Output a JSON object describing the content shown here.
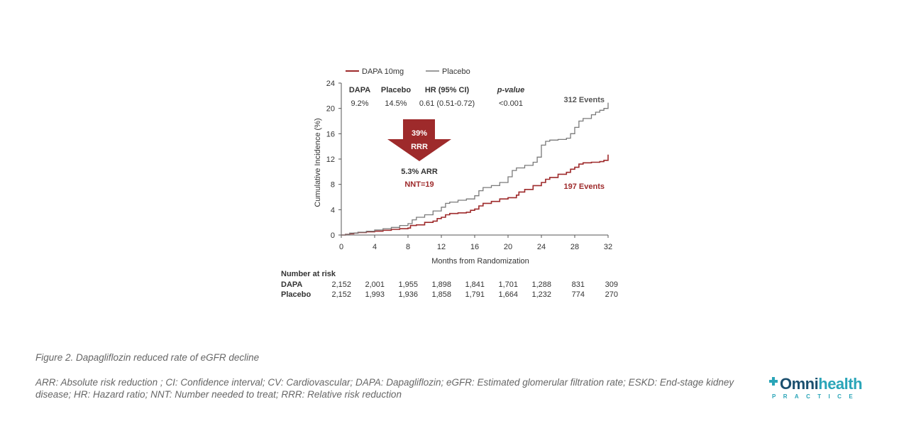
{
  "chart_data": {
    "type": "line",
    "xlabel": "Months from Randomization",
    "ylabel": "Cumulative Incidence (%)",
    "xlim": [
      0,
      32
    ],
    "ylim": [
      0,
      24
    ],
    "x_ticks": [
      "0",
      "4",
      "8",
      "12",
      "16",
      "20",
      "24",
      "28",
      "32"
    ],
    "y_ticks": [
      "0",
      "4",
      "8",
      "12",
      "16",
      "20",
      "24"
    ],
    "grid": false,
    "legend_position": "top-left",
    "series": [
      {
        "name": "DAPA 10mg",
        "color": "#9e2a2b",
        "end_label": "197 Events",
        "points": [
          [
            0,
            0
          ],
          [
            0.5,
            0.1
          ],
          [
            1,
            0.2
          ],
          [
            1.5,
            0.3
          ],
          [
            2,
            0.4
          ],
          [
            3,
            0.5
          ],
          [
            4,
            0.6
          ],
          [
            5,
            0.75
          ],
          [
            6,
            0.9
          ],
          [
            7,
            1.0
          ],
          [
            8,
            1.1
          ],
          [
            8.3,
            1.5
          ],
          [
            9,
            1.6
          ],
          [
            10,
            2.0
          ],
          [
            11,
            2.2
          ],
          [
            11.5,
            2.6
          ],
          [
            12,
            2.8
          ],
          [
            12.5,
            3.2
          ],
          [
            13,
            3.4
          ],
          [
            14,
            3.5
          ],
          [
            15,
            3.6
          ],
          [
            15.5,
            3.9
          ],
          [
            16,
            4.1
          ],
          [
            16.5,
            4.6
          ],
          [
            17,
            5.0
          ],
          [
            18,
            5.3
          ],
          [
            19,
            5.7
          ],
          [
            20,
            5.9
          ],
          [
            21,
            6.3
          ],
          [
            21.3,
            6.8
          ],
          [
            22,
            7.2
          ],
          [
            23,
            7.8
          ],
          [
            24,
            8.3
          ],
          [
            24.5,
            8.8
          ],
          [
            25,
            9.1
          ],
          [
            26,
            9.6
          ],
          [
            27,
            9.9
          ],
          [
            27.5,
            10.4
          ],
          [
            28,
            10.7
          ],
          [
            28.5,
            11.2
          ],
          [
            29,
            11.4
          ],
          [
            30,
            11.5
          ],
          [
            31,
            11.6
          ],
          [
            31.5,
            11.8
          ],
          [
            32,
            12.7
          ]
        ]
      },
      {
        "name": "Placebo",
        "color": "#7a7a7a",
        "end_label": "312 Events",
        "points": [
          [
            0,
            0
          ],
          [
            0.5,
            0.1
          ],
          [
            1,
            0.3
          ],
          [
            2,
            0.45
          ],
          [
            3,
            0.6
          ],
          [
            4,
            0.8
          ],
          [
            5,
            1.0
          ],
          [
            6,
            1.2
          ],
          [
            7,
            1.5
          ],
          [
            8,
            1.8
          ],
          [
            8.5,
            2.4
          ],
          [
            9,
            2.8
          ],
          [
            10,
            3.2
          ],
          [
            11,
            3.8
          ],
          [
            12,
            4.4
          ],
          [
            12.5,
            5.0
          ],
          [
            13,
            5.2
          ],
          [
            14,
            5.5
          ],
          [
            15,
            5.7
          ],
          [
            16,
            6.2
          ],
          [
            16.5,
            7.0
          ],
          [
            17,
            7.5
          ],
          [
            18,
            7.8
          ],
          [
            19,
            8.3
          ],
          [
            20,
            9.2
          ],
          [
            20.5,
            10.2
          ],
          [
            21,
            10.6
          ],
          [
            22,
            11.0
          ],
          [
            23,
            11.5
          ],
          [
            23.5,
            12.3
          ],
          [
            24,
            14.2
          ],
          [
            24.5,
            14.8
          ],
          [
            25,
            15.0
          ],
          [
            26,
            15.1
          ],
          [
            27,
            15.3
          ],
          [
            27.5,
            16.0
          ],
          [
            28,
            17.0
          ],
          [
            28.5,
            18.0
          ],
          [
            29,
            18.4
          ],
          [
            30,
            19.0
          ],
          [
            30.5,
            19.4
          ],
          [
            31,
            19.7
          ],
          [
            31.5,
            20.0
          ],
          [
            32,
            20.9
          ]
        ]
      }
    ],
    "stats_table": {
      "headers": [
        "DAPA",
        "Placebo",
        "HR (95% CI)",
        "p-value"
      ],
      "values": [
        "9.2%",
        "14.5%",
        "0.61 (0.51-0.72)",
        "<0.001"
      ]
    },
    "arrow_label_line1": "39%",
    "arrow_label_line2": "RRR",
    "arr_text": "5.3% ARR",
    "nnt_text": "NNT=19",
    "risk_table": {
      "title": "Number at risk",
      "rows": [
        {
          "label": "DAPA",
          "values": [
            "2,152",
            "2,001",
            "1,955",
            "1,898",
            "1,841",
            "1,701",
            "1,288",
            "831",
            "309"
          ]
        },
        {
          "label": "Placebo",
          "values": [
            "2,152",
            "1,993",
            "1,936",
            "1,858",
            "1,791",
            "1,664",
            "1,232",
            "774",
            "270"
          ]
        }
      ]
    }
  },
  "caption": "Figure 2. Dapagliflozin reduced rate of eGFR decline",
  "footnote": "ARR: Absolute risk reduction ; CI: Confidence interval; CV: Cardiovascular; DAPA: Dapagliflozin; eGFR: Estimated glomerular filtration rate; ESKD: End-stage kidney disease; HR: Hazard ratio; NNT: Number needed to treat; RRR: Relative risk reduction",
  "logo": {
    "o": "O",
    "mni": "mni",
    "health": "health",
    "sub": "PRACTICE",
    "color_dark": "#1b4f6e",
    "color_accent": "#2aa5b8"
  }
}
